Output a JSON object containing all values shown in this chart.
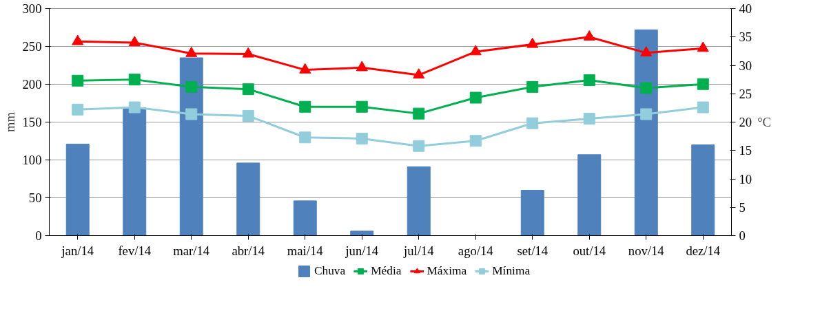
{
  "chart_data": {
    "type": "bar",
    "ylabel": "mm",
    "y2label": "°C",
    "categories": [
      "jan/14",
      "fev/14",
      "mar/14",
      "abr/14",
      "mai/14",
      "jun/14",
      "jul/14",
      "ago/14",
      "set/14",
      "out/14",
      "nov/14",
      "dez/14"
    ],
    "series": [
      {
        "name": "Chuva",
        "color": "#4f81bd",
        "values": [
          121,
          169,
          235,
          96,
          46,
          6,
          91,
          0,
          60,
          107,
          272,
          120
        ]
      },
      {
        "name": "Média",
        "type": "line",
        "axis": "y2",
        "marker": "square",
        "color": "#00b050",
        "values": [
          27.3,
          27.5,
          26.2,
          25.8,
          22.7,
          22.7,
          21.5,
          24.3,
          26.2,
          27.4,
          26.0,
          26.7
        ]
      },
      {
        "name": "Máxima",
        "type": "line",
        "axis": "y2",
        "marker": "triangle",
        "color": "#ff0000",
        "values": [
          34.2,
          34.0,
          32.1,
          32.0,
          29.2,
          29.6,
          28.3,
          32.4,
          33.7,
          35.0,
          32.2,
          33.0
        ]
      },
      {
        "name": "Mínima",
        "type": "line",
        "axis": "y2",
        "marker": "square",
        "color": "#92cddc",
        "values": [
          22.2,
          22.6,
          21.4,
          21.1,
          17.3,
          17.1,
          15.8,
          16.7,
          19.8,
          20.6,
          21.4,
          22.6
        ]
      }
    ],
    "ylim": [
      0,
      300
    ],
    "yticks": [
      0,
      50,
      100,
      150,
      200,
      250,
      300
    ],
    "y2lim": [
      0,
      40
    ],
    "y2ticks": [
      0,
      5,
      10,
      15,
      20,
      25,
      30,
      35,
      40
    ],
    "grid": "y",
    "legend": "bottom",
    "line_style": "solid"
  }
}
